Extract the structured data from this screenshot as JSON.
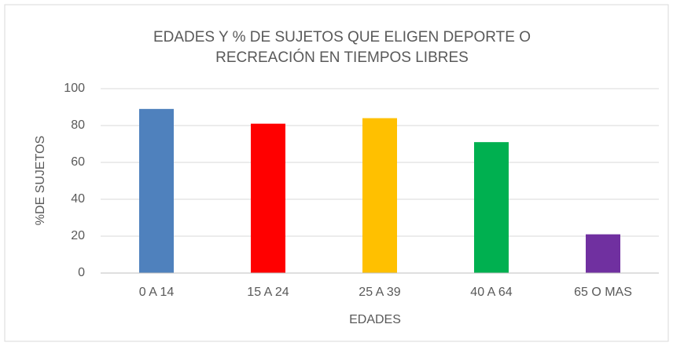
{
  "chart_data": {
    "type": "bar",
    "title": [
      "EDADES Y % DE SUJETOS QUE ELIGEN DEPORTE O",
      "RECREACIÓN EN TIEMPOS LIBRES"
    ],
    "x_label": "EDADES",
    "y_label": "%DE SUJETOS",
    "categories": [
      "0 A 14",
      "15 A 24",
      "25 A 39",
      "40 A 64",
      "65 O MAS"
    ],
    "values": [
      89,
      81,
      84,
      71,
      21
    ],
    "colors": [
      "#4f81bd",
      "#ff0000",
      "#ffc000",
      "#00b050",
      "#7030a0"
    ],
    "ylim": [
      0,
      100
    ],
    "yticks": [
      0,
      20,
      40,
      60,
      80,
      100
    ],
    "grid": true
  }
}
